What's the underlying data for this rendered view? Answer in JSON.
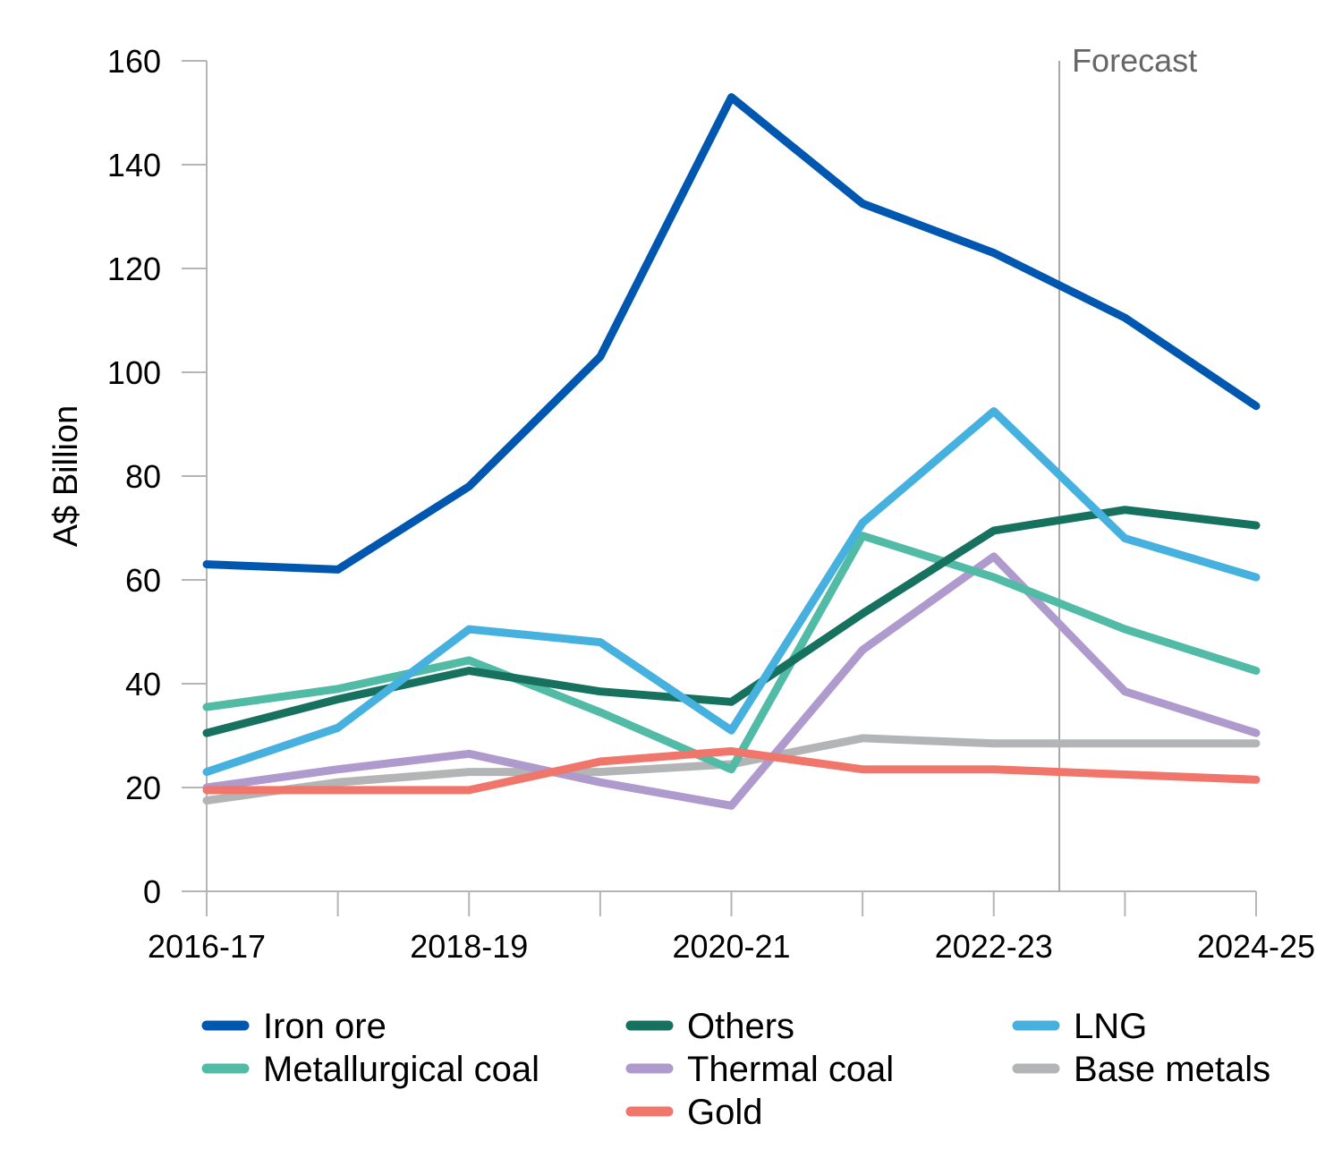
{
  "chart_data": {
    "type": "line",
    "title": "",
    "xlabel": "",
    "ylabel": "A$ Billion",
    "ylim": [
      0,
      160
    ],
    "yticks": [
      0,
      20,
      40,
      60,
      80,
      100,
      120,
      140,
      160
    ],
    "grid": false,
    "legend_position": "bottom",
    "x": [
      "2016-17",
      "2017-18",
      "2018-19",
      "2019-20",
      "2020-21",
      "2021-22",
      "2022-23",
      "2023-24",
      "2024-25"
    ],
    "x_tick_labels": [
      "2016-17",
      "2018-19",
      "2020-21",
      "2022-23",
      "2024-25"
    ],
    "forecast": {
      "label": "Forecast",
      "after_index": 6.5
    },
    "series": [
      {
        "name": "Iron ore",
        "color": "#0057B0",
        "values": [
          63,
          62,
          78,
          103,
          153,
          132.5,
          123,
          110.5,
          93.5
        ]
      },
      {
        "name": "Others",
        "color": "#16725E",
        "values": [
          30.5,
          37,
          42.5,
          38.5,
          36.5,
          53.5,
          69.5,
          73.5,
          70.5
        ]
      },
      {
        "name": "LNG",
        "color": "#46B1DE",
        "values": [
          23,
          31.5,
          50.5,
          48,
          31,
          71,
          92.5,
          68,
          60.5
        ]
      },
      {
        "name": "Metallurgical coal",
        "color": "#52BBA6",
        "values": [
          35.5,
          39,
          44.5,
          34.5,
          23.5,
          68.5,
          60.5,
          50.5,
          42.5
        ]
      },
      {
        "name": "Thermal coal",
        "color": "#AE9ACC",
        "values": [
          20,
          23.5,
          26.5,
          21,
          16.5,
          46.5,
          64.5,
          38.5,
          30.5
        ]
      },
      {
        "name": "Base metals",
        "color": "#B2B4B5",
        "values": [
          17.5,
          21,
          23,
          23,
          24.5,
          29.5,
          28.5,
          28.5,
          28.5
        ]
      },
      {
        "name": "Gold",
        "color": "#F0756A",
        "values": [
          19.5,
          19.5,
          19.5,
          25,
          27,
          23.5,
          23.5,
          22.5,
          21.5
        ]
      }
    ]
  }
}
